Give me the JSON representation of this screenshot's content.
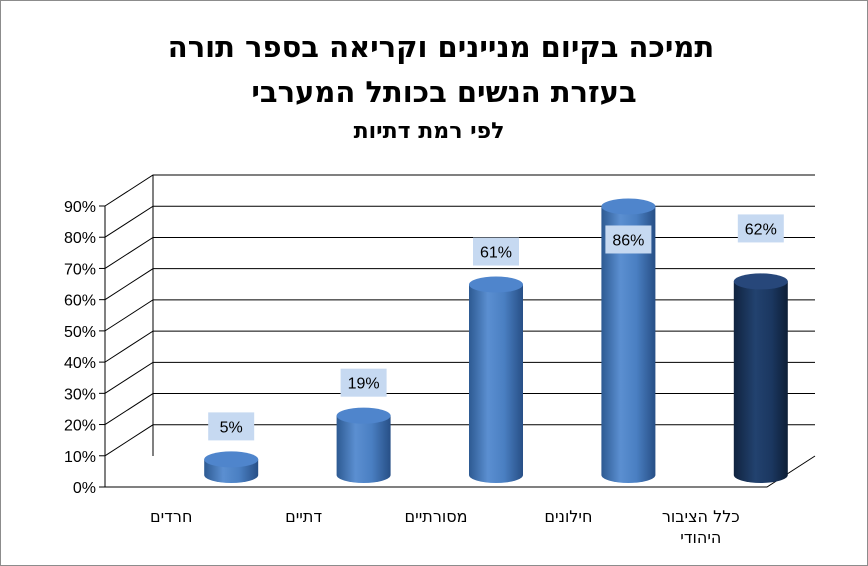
{
  "chart_data": {
    "type": "bar",
    "title_lines": [
      "תמיכה בקיום מניינים וקריאה בספר תורה",
      "בעזרת הנשים בכותל המערבי"
    ],
    "subtitle": "לפי רמת דתיות",
    "categories": [
      [
        "חרדים"
      ],
      [
        "דתיים"
      ],
      [
        "מסורתיים"
      ],
      [
        "חילונים"
      ],
      [
        "כלל הציבור",
        "היהודי"
      ]
    ],
    "values": [
      5,
      19,
      61,
      86,
      62
    ],
    "data_labels": [
      "5%",
      "19%",
      "61%",
      "86%",
      "62%"
    ],
    "y_ticks": [
      "0%",
      "10%",
      "20%",
      "30%",
      "40%",
      "50%",
      "60%",
      "70%",
      "80%",
      "90%"
    ],
    "ylim": [
      0,
      90
    ],
    "grid": true,
    "colors": {
      "bar": "#4f81bd",
      "bar_highlight": "#1f3864",
      "label_bg": "#c6d9f1",
      "grid": "#000000"
    }
  }
}
